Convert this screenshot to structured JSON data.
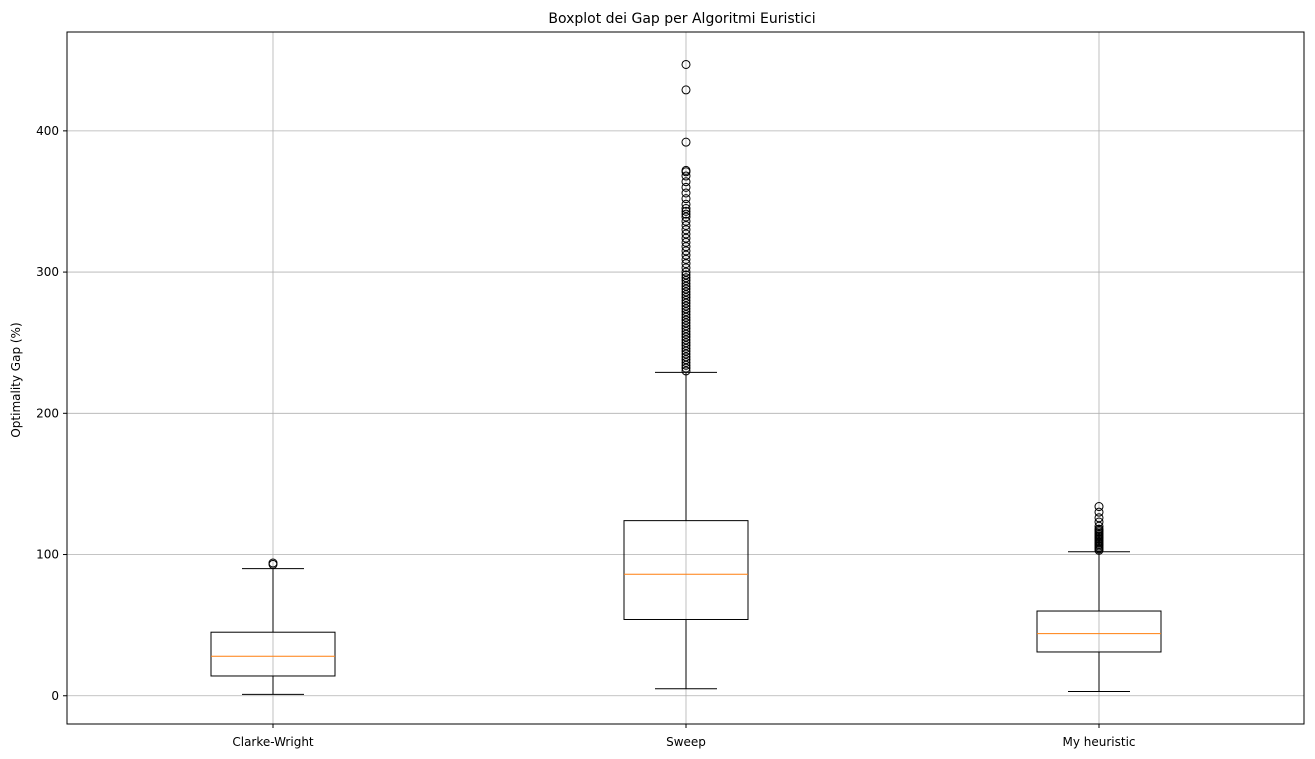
{
  "chart_data": {
    "type": "boxplot",
    "title": "Boxplot dei Gap per Algoritmi Euristici",
    "xlabel": "",
    "ylabel": "Optimality Gap (%)",
    "ylim": [
      -20,
      470
    ],
    "yticks": [
      0,
      100,
      200,
      300,
      400
    ],
    "grid": true,
    "categories": [
      "Clarke-Wright",
      "Sweep",
      "My heuristic"
    ],
    "series": [
      {
        "category": "Clarke-Wright",
        "whisker_low": 1,
        "q1": 14,
        "median": 28,
        "q3": 45,
        "whisker_high": 90,
        "outliers": [
          93,
          94
        ]
      },
      {
        "category": "Sweep",
        "whisker_low": 5,
        "q1": 54,
        "median": 86,
        "q3": 124,
        "whisker_high": 229,
        "outliers": [
          230,
          232,
          234,
          236,
          238,
          240,
          242,
          244,
          246,
          248,
          250,
          252,
          254,
          256,
          258,
          260,
          262,
          264,
          266,
          268,
          270,
          272,
          274,
          276,
          278,
          280,
          282,
          284,
          286,
          288,
          290,
          292,
          294,
          296,
          298,
          300,
          303,
          306,
          309,
          312,
          315,
          318,
          321,
          324,
          327,
          330,
          333,
          336,
          339,
          341,
          343,
          345,
          348,
          352,
          356,
          360,
          364,
          368,
          371,
          372,
          392,
          429,
          447
        ]
      },
      {
        "category": "My heuristic",
        "whisker_low": 3,
        "q1": 31,
        "median": 44,
        "q3": 60,
        "whisker_high": 102,
        "outliers": [
          103,
          104,
          105,
          106,
          107,
          108,
          109,
          110,
          111,
          112,
          113,
          114,
          115,
          116,
          117,
          118,
          120,
          123,
          126,
          130,
          134
        ]
      }
    ],
    "colors": {
      "box": "#000000",
      "median": "#ff7f0e",
      "grid": "#b0b0b0"
    }
  }
}
